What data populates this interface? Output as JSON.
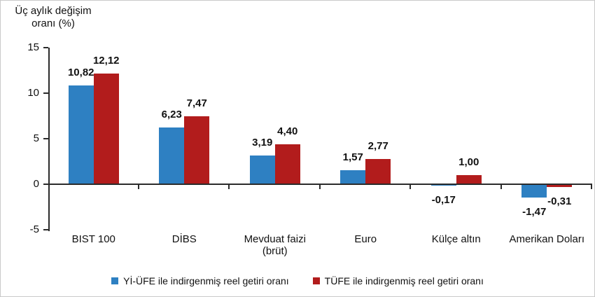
{
  "title": {
    "line1": "Üç aylık değişim",
    "line2": "oranı (%)"
  },
  "chart_data": {
    "type": "bar",
    "title": "Üç aylık değişim oranı (%)",
    "ylabel": "Üç aylık değişim oranı (%)",
    "xlabel": "",
    "categories": [
      "BIST 100",
      "DİBS",
      "Mevduat faizi\n(brüt)",
      "Euro",
      "Külçe altın",
      "Amerikan Doları"
    ],
    "series": [
      {
        "name": "Yİ-ÜFE ile indirgenmiş reel getiri oranı",
        "color": "#2E80C2",
        "values": [
          10.82,
          6.23,
          3.19,
          1.57,
          -0.17,
          -1.47
        ],
        "labels": [
          "10,82",
          "6,23",
          "3,19",
          "1,57",
          "-0,17",
          "-1,47"
        ]
      },
      {
        "name": "TÜFE ile indirgenmiş reel getiri oranı",
        "color": "#B21C1C",
        "values": [
          12.12,
          7.47,
          4.4,
          2.77,
          1.0,
          -0.31
        ],
        "labels": [
          "12,12",
          "7,47",
          "4,40",
          "2,77",
          "1,00",
          "-0,31"
        ]
      }
    ],
    "ylim": [
      -5,
      15
    ],
    "yticks": [
      15,
      10,
      5,
      0,
      -5
    ],
    "grid": false,
    "legend_position": "bottom",
    "axis_color": "#2b2b2b",
    "text_color": "#111111"
  }
}
